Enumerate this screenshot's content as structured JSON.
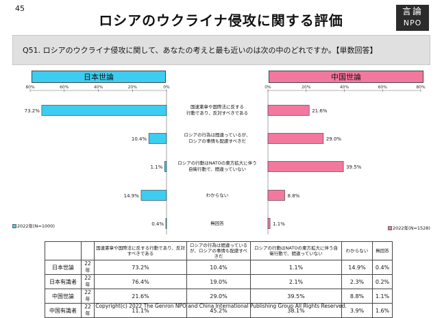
{
  "page_number": "45",
  "title": "ロシアのウクライナ侵攻に関する評価",
  "logo": {
    "line1": "言論",
    "line2": "NPO"
  },
  "question": "Q51. ロシアのウクライナ侵攻に関して、あなたの考えと最も近いのは次の中のどれですか。【単数回答】",
  "panels": {
    "left_header": "日本世論",
    "right_header": "中国世論"
  },
  "colors": {
    "japan": "#3ccdf0",
    "china": "#f3789e"
  },
  "chart_data": {
    "type": "bar",
    "orientation": "horizontal-butterfly",
    "categories": [
      [
        "国連憲章や国際法に反する",
        "行動であり、反対すべきである"
      ],
      [
        "ロシアの行為は間違っているが、",
        "ロシアの事情も配慮すべきだ"
      ],
      [
        "ロシアの行動はNATOの東方拡大に伴う",
        "自衛行動で、間違っていない"
      ],
      [
        "わからない"
      ],
      [
        "無回答"
      ]
    ],
    "series": [
      {
        "name": "2022年(N=1000)",
        "panel": "日本世論",
        "values": [
          73.2,
          10.4,
          1.1,
          14.9,
          0.4
        ],
        "labels": [
          "73.2%",
          "10.4%",
          "1.1%",
          "14.9%",
          "0.4%"
        ]
      },
      {
        "name": "2022年(N=1528)",
        "panel": "中国世論",
        "values": [
          21.6,
          29.0,
          39.5,
          8.8,
          1.1
        ],
        "labels": [
          "21.6%",
          "29.0%",
          "39.5%",
          "8.8%",
          "1.1%"
        ]
      }
    ],
    "left_ticks": [
      "80%",
      "60%",
      "40%",
      "20%",
      "0%"
    ],
    "right_ticks": [
      "0%",
      "20%",
      "40%",
      "60%",
      "80%"
    ],
    "xlim": [
      0,
      80
    ]
  },
  "table": {
    "headers": [
      "国連憲章や国際法に反する行動であり、反対すべきである",
      "ロシアの行為は間違っているが、ロシアの事情も配慮すべきだ",
      "ロシアの行動はNATOの東方拡大に伴う自衛行動で、間違っていない",
      "わからない",
      "無回答"
    ],
    "rows": [
      {
        "label": "日本世論",
        "year": "22年",
        "cells": [
          "73.2%",
          "10.4%",
          "1.1%",
          "14.9%",
          "0.4%"
        ]
      },
      {
        "label": "日本有識者",
        "year": "22年",
        "cells": [
          "76.4%",
          "19.0%",
          "2.1%",
          "2.3%",
          "0.2%"
        ]
      },
      {
        "label": "中国世論",
        "year": "22年",
        "cells": [
          "21.6%",
          "29.0%",
          "39.5%",
          "8.8%",
          "1.1%"
        ]
      },
      {
        "label": "中国有識者",
        "year": "22年",
        "cells": [
          "11.1%",
          "45.2%",
          "38.1%",
          "3.9%",
          "1.6%"
        ]
      }
    ]
  },
  "copyright": "Copyright(c) 2022 The Genron NPO and China International Publishing Group All Rights Reserved."
}
